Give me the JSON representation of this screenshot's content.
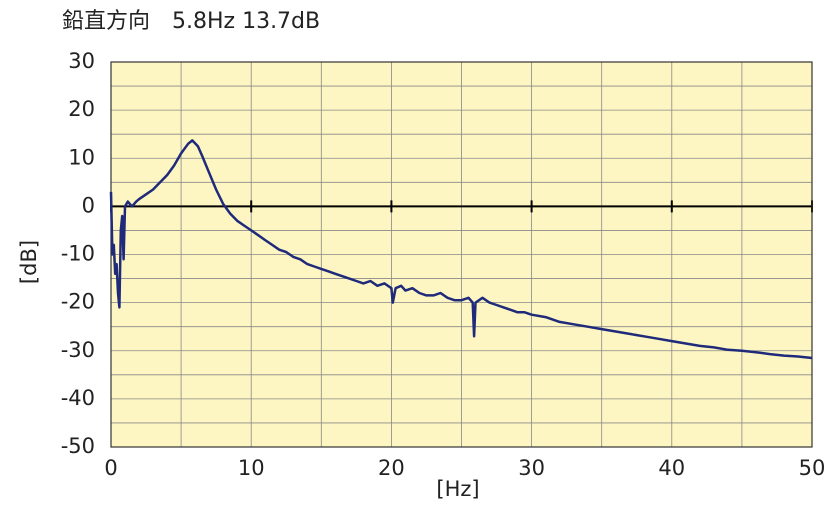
{
  "chart_data": {
    "type": "line",
    "title": "鉛直方向　5.8Hz 13.7dB",
    "x_label": "[Hz]",
    "y_label": "[dB]",
    "x": [
      0,
      0.1,
      0.2,
      0.3,
      0.4,
      0.5,
      0.6,
      0.7,
      0.8,
      0.9,
      1.0,
      1.2,
      1.5,
      1.8,
      2.0,
      2.5,
      3.0,
      3.5,
      4.0,
      4.5,
      5.0,
      5.5,
      5.8,
      6.2,
      6.5,
      7.0,
      7.5,
      8.0,
      8.5,
      9.0,
      9.5,
      10.0,
      10.5,
      11.0,
      11.5,
      12.0,
      12.5,
      13.0,
      13.5,
      14.0,
      14.5,
      15.0,
      15.5,
      16.0,
      16.5,
      17.0,
      17.5,
      18.0,
      18.5,
      19.0,
      19.5,
      20.0,
      20.1,
      20.3,
      20.7,
      21.0,
      21.5,
      22.0,
      22.5,
      23.0,
      23.5,
      24.0,
      24.5,
      25.0,
      25.5,
      25.8,
      25.9,
      26.0,
      26.5,
      27.0,
      27.5,
      28.0,
      28.5,
      29.0,
      29.5,
      30.0,
      31.0,
      32.0,
      33.0,
      34.0,
      35.0,
      36.0,
      37.0,
      38.0,
      39.0,
      40.0,
      41.0,
      42.0,
      43.0,
      44.0,
      45.0,
      46.0,
      47.0,
      48.0,
      49.0,
      50.0
    ],
    "series": [
      {
        "name": "鉛直方向",
        "color": "#1f2a7a",
        "values": [
          3,
          -10,
          -8,
          -14,
          -12,
          -18,
          -21,
          -5,
          -2,
          -11,
          0,
          1,
          0,
          1,
          1.5,
          2.5,
          3.5,
          5,
          6.5,
          8.5,
          11,
          13,
          13.7,
          12.5,
          10.5,
          7,
          3.5,
          0.5,
          -1.5,
          -3,
          -4,
          -5,
          -6,
          -7,
          -8,
          -9,
          -9.5,
          -10.5,
          -11,
          -12,
          -12.5,
          -13,
          -13.5,
          -14,
          -14.5,
          -15,
          -15.5,
          -16,
          -15.5,
          -16.5,
          -16,
          -17,
          -20,
          -17,
          -16.5,
          -17.5,
          -17,
          -18,
          -18.5,
          -18.5,
          -18,
          -19,
          -19.5,
          -19.5,
          -19,
          -20,
          -27,
          -20,
          -19,
          -20,
          -20.5,
          -21,
          -21.5,
          -22,
          -22,
          -22.5,
          -23,
          -24,
          -24.5,
          -25,
          -25.5,
          -26,
          -26.5,
          -27,
          -27.5,
          -28,
          -28.5,
          -29,
          -29.3,
          -29.8,
          -30,
          -30.3,
          -30.7,
          -31,
          -31.2,
          -31.5
        ]
      }
    ],
    "xlim": [
      0,
      50
    ],
    "xticks": [
      0,
      10,
      20,
      30,
      40,
      50
    ],
    "ylim": [
      -50,
      30
    ],
    "yticks": [
      -50,
      -40,
      -30,
      -20,
      -10,
      0,
      10,
      20,
      30
    ],
    "grid": true,
    "background": "#fdf6c2"
  }
}
